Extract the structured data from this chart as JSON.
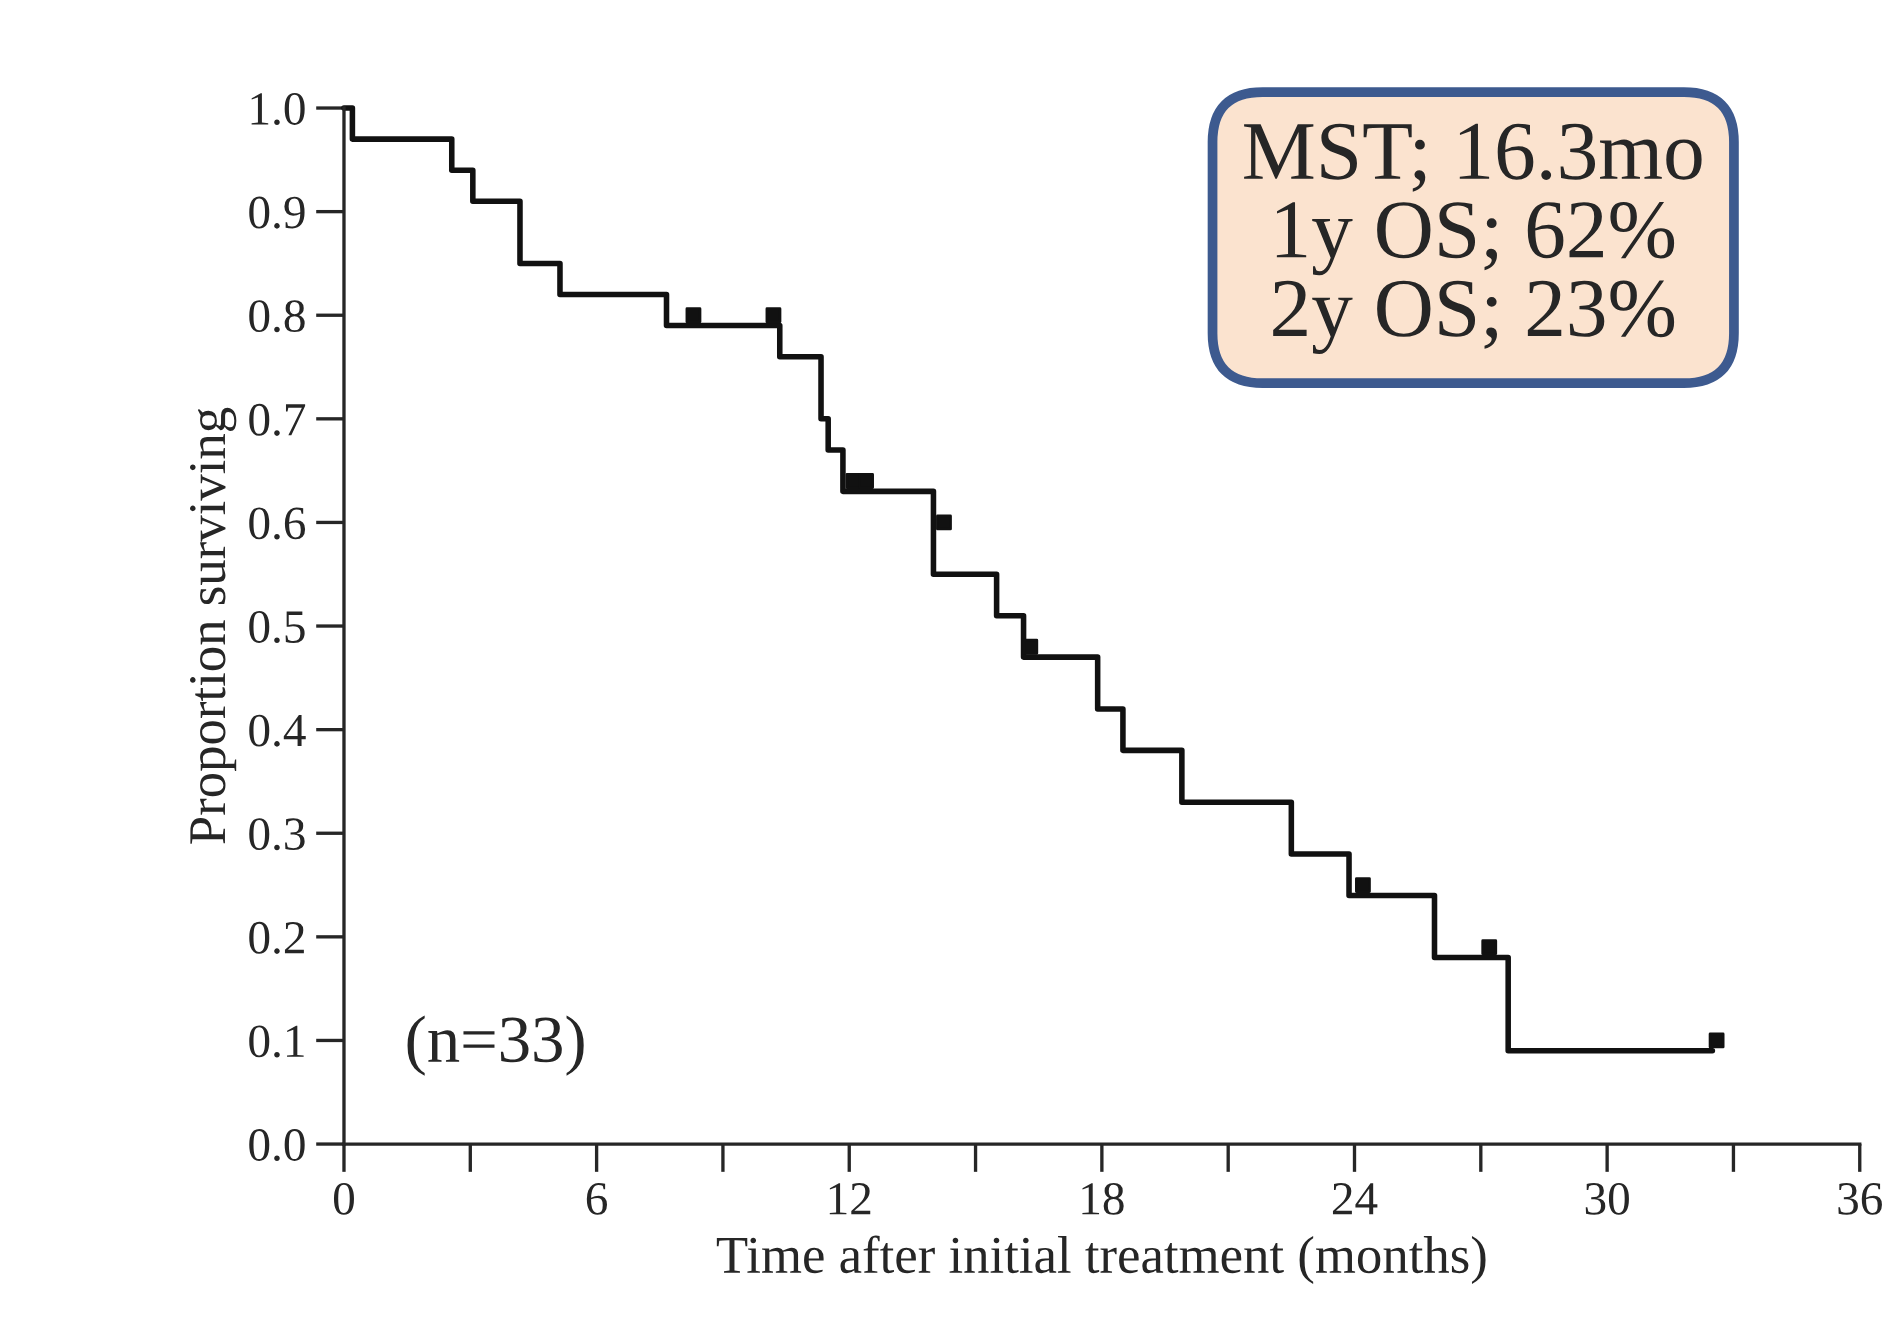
{
  "chart_data": {
    "type": "step",
    "xlabel": "Time after initial treatment (months)",
    "ylabel": "Proportion surviving",
    "xlim": [
      0,
      36
    ],
    "ylim": [
      0,
      1
    ],
    "xticks": [
      0,
      {
        "value": 3,
        "label": null
      },
      6,
      {
        "value": 9,
        "label": null
      },
      12,
      {
        "value": 15,
        "label": null
      },
      18,
      {
        "value": 21,
        "label": null
      },
      24,
      {
        "value": 27,
        "label": null
      },
      30,
      {
        "value": 33,
        "label": null
      },
      36
    ],
    "yticks": [
      {
        "value": 0,
        "label": "0.0"
      },
      {
        "value": 0.1,
        "label": "0.1"
      },
      {
        "value": 0.2,
        "label": "0.2"
      },
      {
        "value": 0.3,
        "label": "0.3"
      },
      {
        "value": 0.4,
        "label": "0.4"
      },
      {
        "value": 0.5,
        "label": "0.5"
      },
      {
        "value": 0.6,
        "label": "0.6"
      },
      {
        "value": 0.7,
        "label": "0.7"
      },
      {
        "value": 0.8,
        "label": "0.8"
      },
      {
        "value": 0.9,
        "label": "0.9"
      },
      {
        "value": 1,
        "label": "1.0"
      }
    ],
    "grid": false,
    "legend": false,
    "series": [
      {
        "color": "#111111",
        "x": [
          0,
          0.2,
          2.56,
          3.06,
          4.18,
          5.13,
          7.66,
          10.35,
          11.33,
          11.5,
          11.85,
          14.0,
          15.5,
          16.14,
          17.9,
          18.5,
          19.9,
          22.5,
          23.87,
          25.9,
          27.65,
          32.5
        ],
        "values": [
          1.0,
          0.97,
          0.94,
          0.91,
          0.85,
          0.82,
          0.79,
          0.76,
          0.7,
          0.67,
          0.63,
          0.55,
          0.51,
          0.47,
          0.42,
          0.38,
          0.33,
          0.28,
          0.24,
          0.18,
          0.09,
          0.09
        ]
      },
      {
        "type": "scatter",
        "marker": "square",
        "color": "#111111",
        "x": [
          8.3,
          10.2,
          12.1,
          12.4,
          14.25,
          16.3,
          24.2,
          27.2,
          32.6
        ],
        "values": [
          0.8,
          0.8,
          0.64,
          0.64,
          0.6,
          0.48,
          0.25,
          0.19,
          0.1
        ]
      }
    ],
    "annotations": [
      "MST; 16.3mo\n1y OS; 62%\n2y OS; 23%",
      "(n=33)"
    ]
  }
}
